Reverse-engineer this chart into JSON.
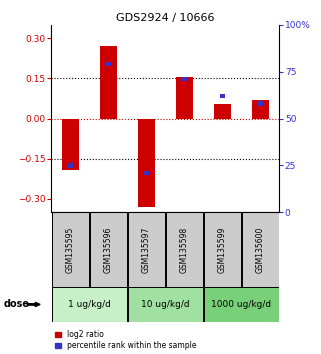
{
  "title": "GDS2924 / 10666",
  "samples": [
    "GSM135595",
    "GSM135596",
    "GSM135597",
    "GSM135598",
    "GSM135599",
    "GSM135600"
  ],
  "log2_ratio": [
    -0.19,
    0.27,
    -0.33,
    0.155,
    0.055,
    0.07
  ],
  "percentile_rank": [
    25,
    79,
    21,
    71,
    62,
    58
  ],
  "dose_groups": [
    {
      "label": "1 ug/kg/d",
      "col_indices": [
        0,
        1
      ],
      "color": "#c8f0c8"
    },
    {
      "label": "10 ug/kg/d",
      "col_indices": [
        2,
        3
      ],
      "color": "#a0e0a0"
    },
    {
      "label": "1000 ug/kg/d",
      "col_indices": [
        4,
        5
      ],
      "color": "#78d078"
    }
  ],
  "bar_color_red": "#cc0000",
  "bar_color_blue": "#3333cc",
  "ylim_left": [
    -0.35,
    0.35
  ],
  "ylim_right": [
    0,
    100
  ],
  "yticks_left": [
    -0.3,
    -0.15,
    0,
    0.15,
    0.3
  ],
  "yticks_right": [
    0,
    25,
    50,
    75,
    100
  ],
  "hlines": [
    -0.15,
    0.0,
    0.15
  ],
  "hline_colors": [
    "black",
    "#cc0000",
    "black"
  ],
  "hline_styles": [
    "dotted",
    "dotted",
    "dotted"
  ],
  "bar_width": 0.45,
  "blue_bar_width": 0.12,
  "legend_red": "log2 ratio",
  "legend_blue": "percentile rank within the sample",
  "dose_label": "dose",
  "label_color_left": "#cc0000",
  "label_color_right": "#3333cc",
  "sample_box_color": "#cccccc",
  "title_fontsize": 8,
  "tick_fontsize": 6.5,
  "sample_fontsize": 5.5,
  "dose_fontsize": 6.5,
  "legend_fontsize": 5.5
}
